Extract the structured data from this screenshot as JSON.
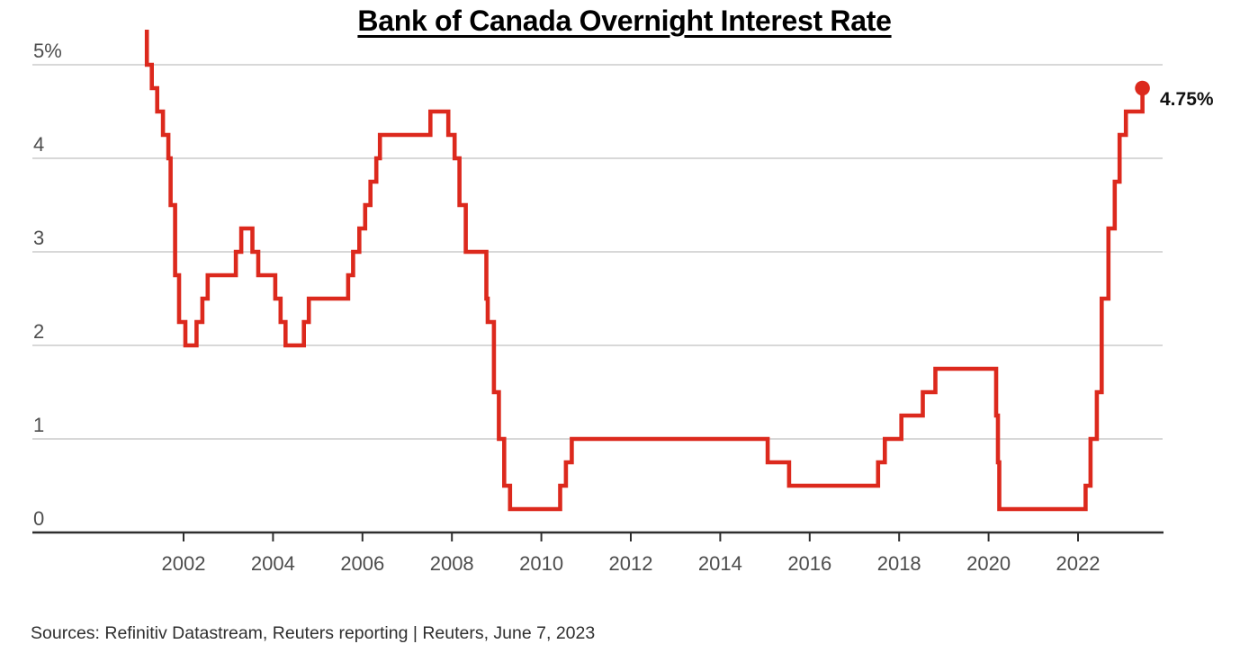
{
  "title": "Bank of Canada Overnight Interest Rate",
  "source_line": "Sources: Refinitiv Datastream, Reuters reporting | Reuters, June 7, 2023",
  "colors": {
    "line": "#dc291d",
    "dot": "#dc291d",
    "grid": "#cbcbcb",
    "axis": "#2e2e2e",
    "tick_label": "#4d4d4d",
    "title": "#000000",
    "end_label": "#111111",
    "background": "#ffffff"
  },
  "chart_data": {
    "type": "line",
    "step": "after",
    "title": "Bank of Canada Overnight Interest Rate",
    "unit": "%",
    "xlabel": "",
    "ylabel": "",
    "grid": "horizontal",
    "xlim": [
      2000.9,
      2023.9
    ],
    "ylim": [
      0,
      5.38
    ],
    "x_ticks": [
      2002,
      2004,
      2006,
      2008,
      2010,
      2012,
      2014,
      2016,
      2018,
      2020,
      2022
    ],
    "y_ticks": [
      {
        "v": 0,
        "label": "0"
      },
      {
        "v": 1,
        "label": "1"
      },
      {
        "v": 2,
        "label": "2"
      },
      {
        "v": 3,
        "label": "3"
      },
      {
        "v": 4,
        "label": "4"
      },
      {
        "v": 5,
        "label": "5%"
      }
    ],
    "series": [
      {
        "name": "Bank of Canada overnight interest rate (%)",
        "points": [
          [
            2001.07,
            5.5
          ],
          [
            2001.18,
            5.0
          ],
          [
            2001.29,
            4.75
          ],
          [
            2001.41,
            4.5
          ],
          [
            2001.54,
            4.25
          ],
          [
            2001.66,
            4.0
          ],
          [
            2001.71,
            3.5
          ],
          [
            2001.81,
            2.75
          ],
          [
            2001.9,
            2.25
          ],
          [
            2002.04,
            2.0
          ],
          [
            2002.29,
            2.25
          ],
          [
            2002.42,
            2.5
          ],
          [
            2002.54,
            2.75
          ],
          [
            2003.17,
            3.0
          ],
          [
            2003.29,
            3.25
          ],
          [
            2003.54,
            3.0
          ],
          [
            2003.67,
            2.75
          ],
          [
            2004.05,
            2.5
          ],
          [
            2004.17,
            2.25
          ],
          [
            2004.28,
            2.0
          ],
          [
            2004.69,
            2.25
          ],
          [
            2004.8,
            2.5
          ],
          [
            2005.68,
            2.75
          ],
          [
            2005.79,
            3.0
          ],
          [
            2005.93,
            3.25
          ],
          [
            2006.06,
            3.5
          ],
          [
            2006.18,
            3.75
          ],
          [
            2006.31,
            4.0
          ],
          [
            2006.39,
            4.25
          ],
          [
            2007.52,
            4.5
          ],
          [
            2007.92,
            4.25
          ],
          [
            2008.06,
            4.0
          ],
          [
            2008.17,
            3.5
          ],
          [
            2008.31,
            3.0
          ],
          [
            2008.77,
            2.5
          ],
          [
            2008.8,
            2.25
          ],
          [
            2008.94,
            1.5
          ],
          [
            2009.05,
            1.0
          ],
          [
            2009.17,
            0.5
          ],
          [
            2009.3,
            0.25
          ],
          [
            2010.42,
            0.5
          ],
          [
            2010.55,
            0.75
          ],
          [
            2010.68,
            1.0
          ],
          [
            2015.06,
            0.75
          ],
          [
            2015.54,
            0.5
          ],
          [
            2017.53,
            0.75
          ],
          [
            2017.68,
            1.0
          ],
          [
            2018.05,
            1.25
          ],
          [
            2018.53,
            1.5
          ],
          [
            2018.81,
            1.75
          ],
          [
            2020.17,
            1.25
          ],
          [
            2020.21,
            0.75
          ],
          [
            2020.24,
            0.25
          ],
          [
            2022.17,
            0.5
          ],
          [
            2022.28,
            1.0
          ],
          [
            2022.42,
            1.5
          ],
          [
            2022.53,
            2.5
          ],
          [
            2022.68,
            3.25
          ],
          [
            2022.82,
            3.75
          ],
          [
            2022.93,
            4.25
          ],
          [
            2023.07,
            4.5
          ],
          [
            2023.44,
            4.75
          ]
        ]
      }
    ],
    "annotation": {
      "x": 2023.44,
      "y": 4.75,
      "label": "4.75%"
    },
    "legend": "none"
  }
}
